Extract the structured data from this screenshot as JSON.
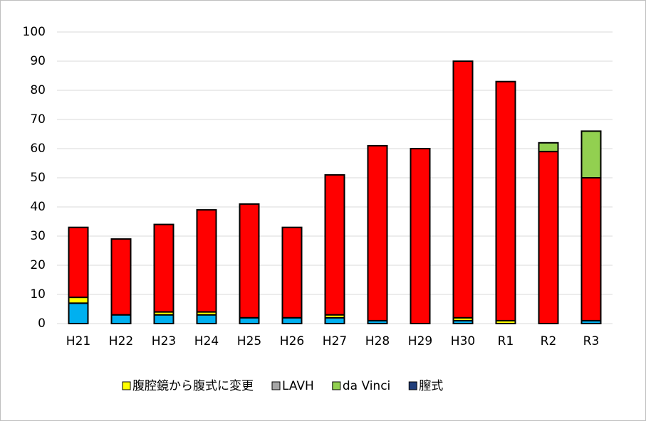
{
  "chart_data": {
    "type": "stacked-bar",
    "categories": [
      "H21",
      "H22",
      "H23",
      "H24",
      "H25",
      "H26",
      "H27",
      "H28",
      "H29",
      "H30",
      "R1",
      "R2",
      "R3"
    ],
    "series": [
      {
        "color": "#00b0f0",
        "values": [
          7,
          3,
          3,
          3,
          2,
          2,
          2,
          1,
          0,
          1,
          0,
          0,
          1
        ]
      },
      {
        "name": "膣式",
        "color": "#1f3d7a",
        "values": [
          0,
          0,
          0,
          0,
          0,
          0,
          0,
          0,
          0,
          0,
          0,
          0,
          0
        ]
      },
      {
        "name": "腹腔鏡から腹式に変更",
        "color": "#ffff00",
        "values": [
          2,
          0,
          1,
          1,
          0,
          0,
          1,
          0,
          0,
          1,
          1,
          0,
          0
        ]
      },
      {
        "name": "LAVH",
        "color": "#a6a6a6",
        "values": [
          0,
          0,
          0,
          0,
          0,
          0,
          0,
          0,
          0,
          0,
          0,
          0,
          0
        ]
      },
      {
        "color": "#ff0000",
        "values": [
          24,
          26,
          30,
          35,
          39,
          31,
          48,
          60,
          60,
          88,
          82,
          59,
          49
        ]
      },
      {
        "name": "da Vinci",
        "color": "#92d050",
        "values": [
          0,
          0,
          0,
          0,
          0,
          0,
          0,
          0,
          0,
          0,
          0,
          3,
          16
        ]
      }
    ],
    "legend_order": [
      2,
      3,
      5,
      1
    ],
    "ylim": [
      0,
      100
    ],
    "yticks": [
      0,
      10,
      20,
      30,
      40,
      50,
      60,
      70,
      80,
      90,
      100
    ],
    "grid": true
  }
}
